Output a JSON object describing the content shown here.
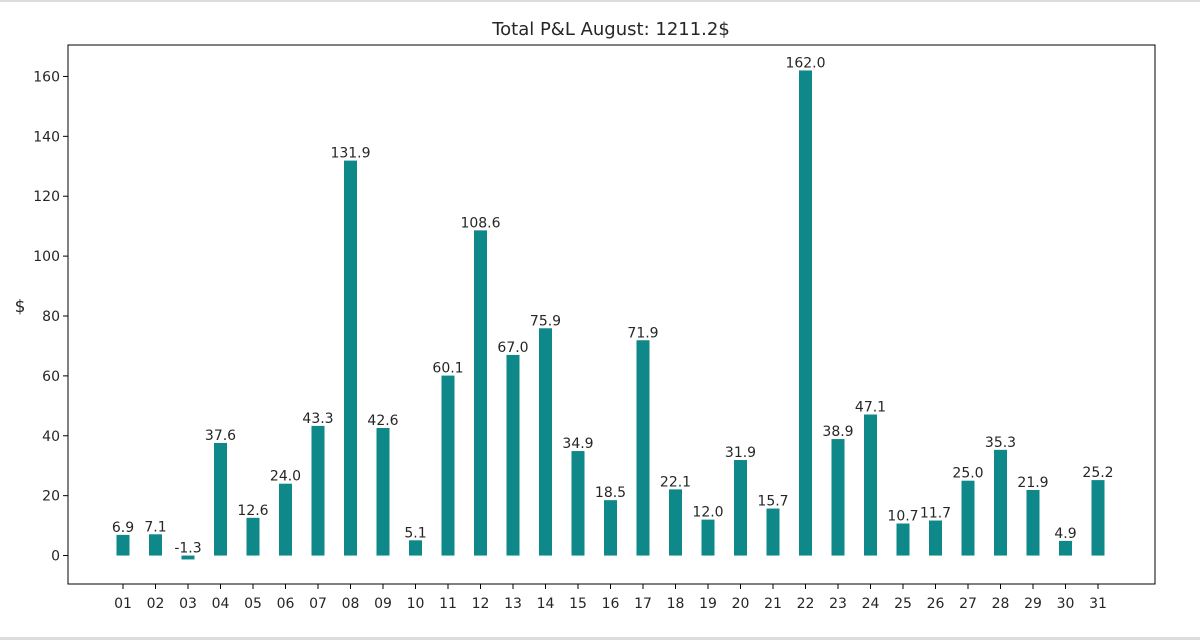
{
  "chart_data": {
    "type": "bar",
    "title": "Total P&L August: 1211.2$",
    "xlabel": "",
    "ylabel": "$",
    "categories": [
      "01",
      "02",
      "03",
      "04",
      "05",
      "06",
      "07",
      "08",
      "09",
      "10",
      "11",
      "12",
      "13",
      "14",
      "15",
      "16",
      "17",
      "18",
      "19",
      "20",
      "21",
      "22",
      "23",
      "24",
      "25",
      "26",
      "27",
      "28",
      "29",
      "30",
      "31"
    ],
    "values": [
      6.9,
      7.1,
      -1.3,
      37.6,
      12.6,
      24.0,
      43.3,
      131.9,
      42.6,
      5.1,
      60.1,
      108.6,
      67.0,
      75.9,
      34.9,
      18.5,
      71.9,
      22.1,
      12.0,
      31.9,
      15.7,
      162.0,
      38.9,
      47.1,
      10.7,
      11.7,
      25.0,
      35.3,
      21.9,
      4.9,
      25.2
    ],
    "data_labels": [
      "6.9",
      "7.1",
      "-1.3",
      "37.6",
      "12.6",
      "24.0",
      "43.3",
      "131.9",
      "42.6",
      "5.1",
      "60.1",
      "108.6",
      "67.0",
      "75.9",
      "34.9",
      "18.5",
      "71.9",
      "22.1",
      "12.0",
      "31.9",
      "15.7",
      "162.0",
      "38.9",
      "47.1",
      "10.7",
      "11.7",
      "25.0",
      "35.3",
      "21.9",
      "4.9",
      "25.2"
    ],
    "yticks": [
      0,
      20,
      40,
      60,
      80,
      100,
      120,
      140,
      160
    ],
    "ylim": [
      -9.5,
      170.5
    ],
    "grid": false,
    "bar_color": "#0e8888"
  }
}
